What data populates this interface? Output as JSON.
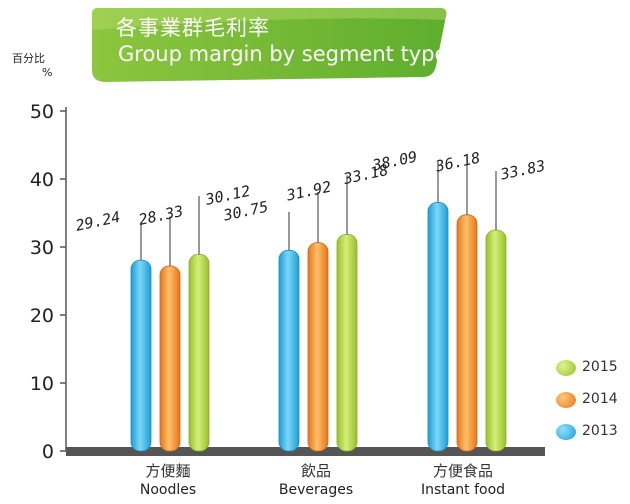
{
  "header": {
    "title_cn": "各事業群毛利率",
    "title_en": "Group margin by segment type"
  },
  "y_unit": {
    "cn": "百分比",
    "symbol": "%"
  },
  "colors": {
    "y2013": "#27b2e6",
    "y2014": "#f28a25",
    "y2015": "#a9cf38",
    "banner": "#7cbd2e",
    "axis": "#444444"
  },
  "chart_data": {
    "type": "bar",
    "title": "Group margin by segment type",
    "ylabel": "%",
    "ylim": [
      0,
      50
    ],
    "yticks": [
      "0",
      "10",
      "20",
      "30",
      "40",
      "50"
    ],
    "categories": [
      {
        "cn": "方便麵",
        "en": "Noodles"
      },
      {
        "cn": "飲品",
        "en": "Beverages"
      },
      {
        "cn": "方便食品",
        "en": "Instant food"
      }
    ],
    "series": [
      {
        "name": "2013",
        "values": [
          29.24,
          30.75,
          38.09
        ]
      },
      {
        "name": "2014",
        "values": [
          28.33,
          31.92,
          36.18
        ]
      },
      {
        "name": "2015",
        "values": [
          30.12,
          33.18,
          33.83
        ]
      }
    ],
    "legend": [
      "2015",
      "2014",
      "2013"
    ],
    "legend_position": "bottom-right"
  }
}
